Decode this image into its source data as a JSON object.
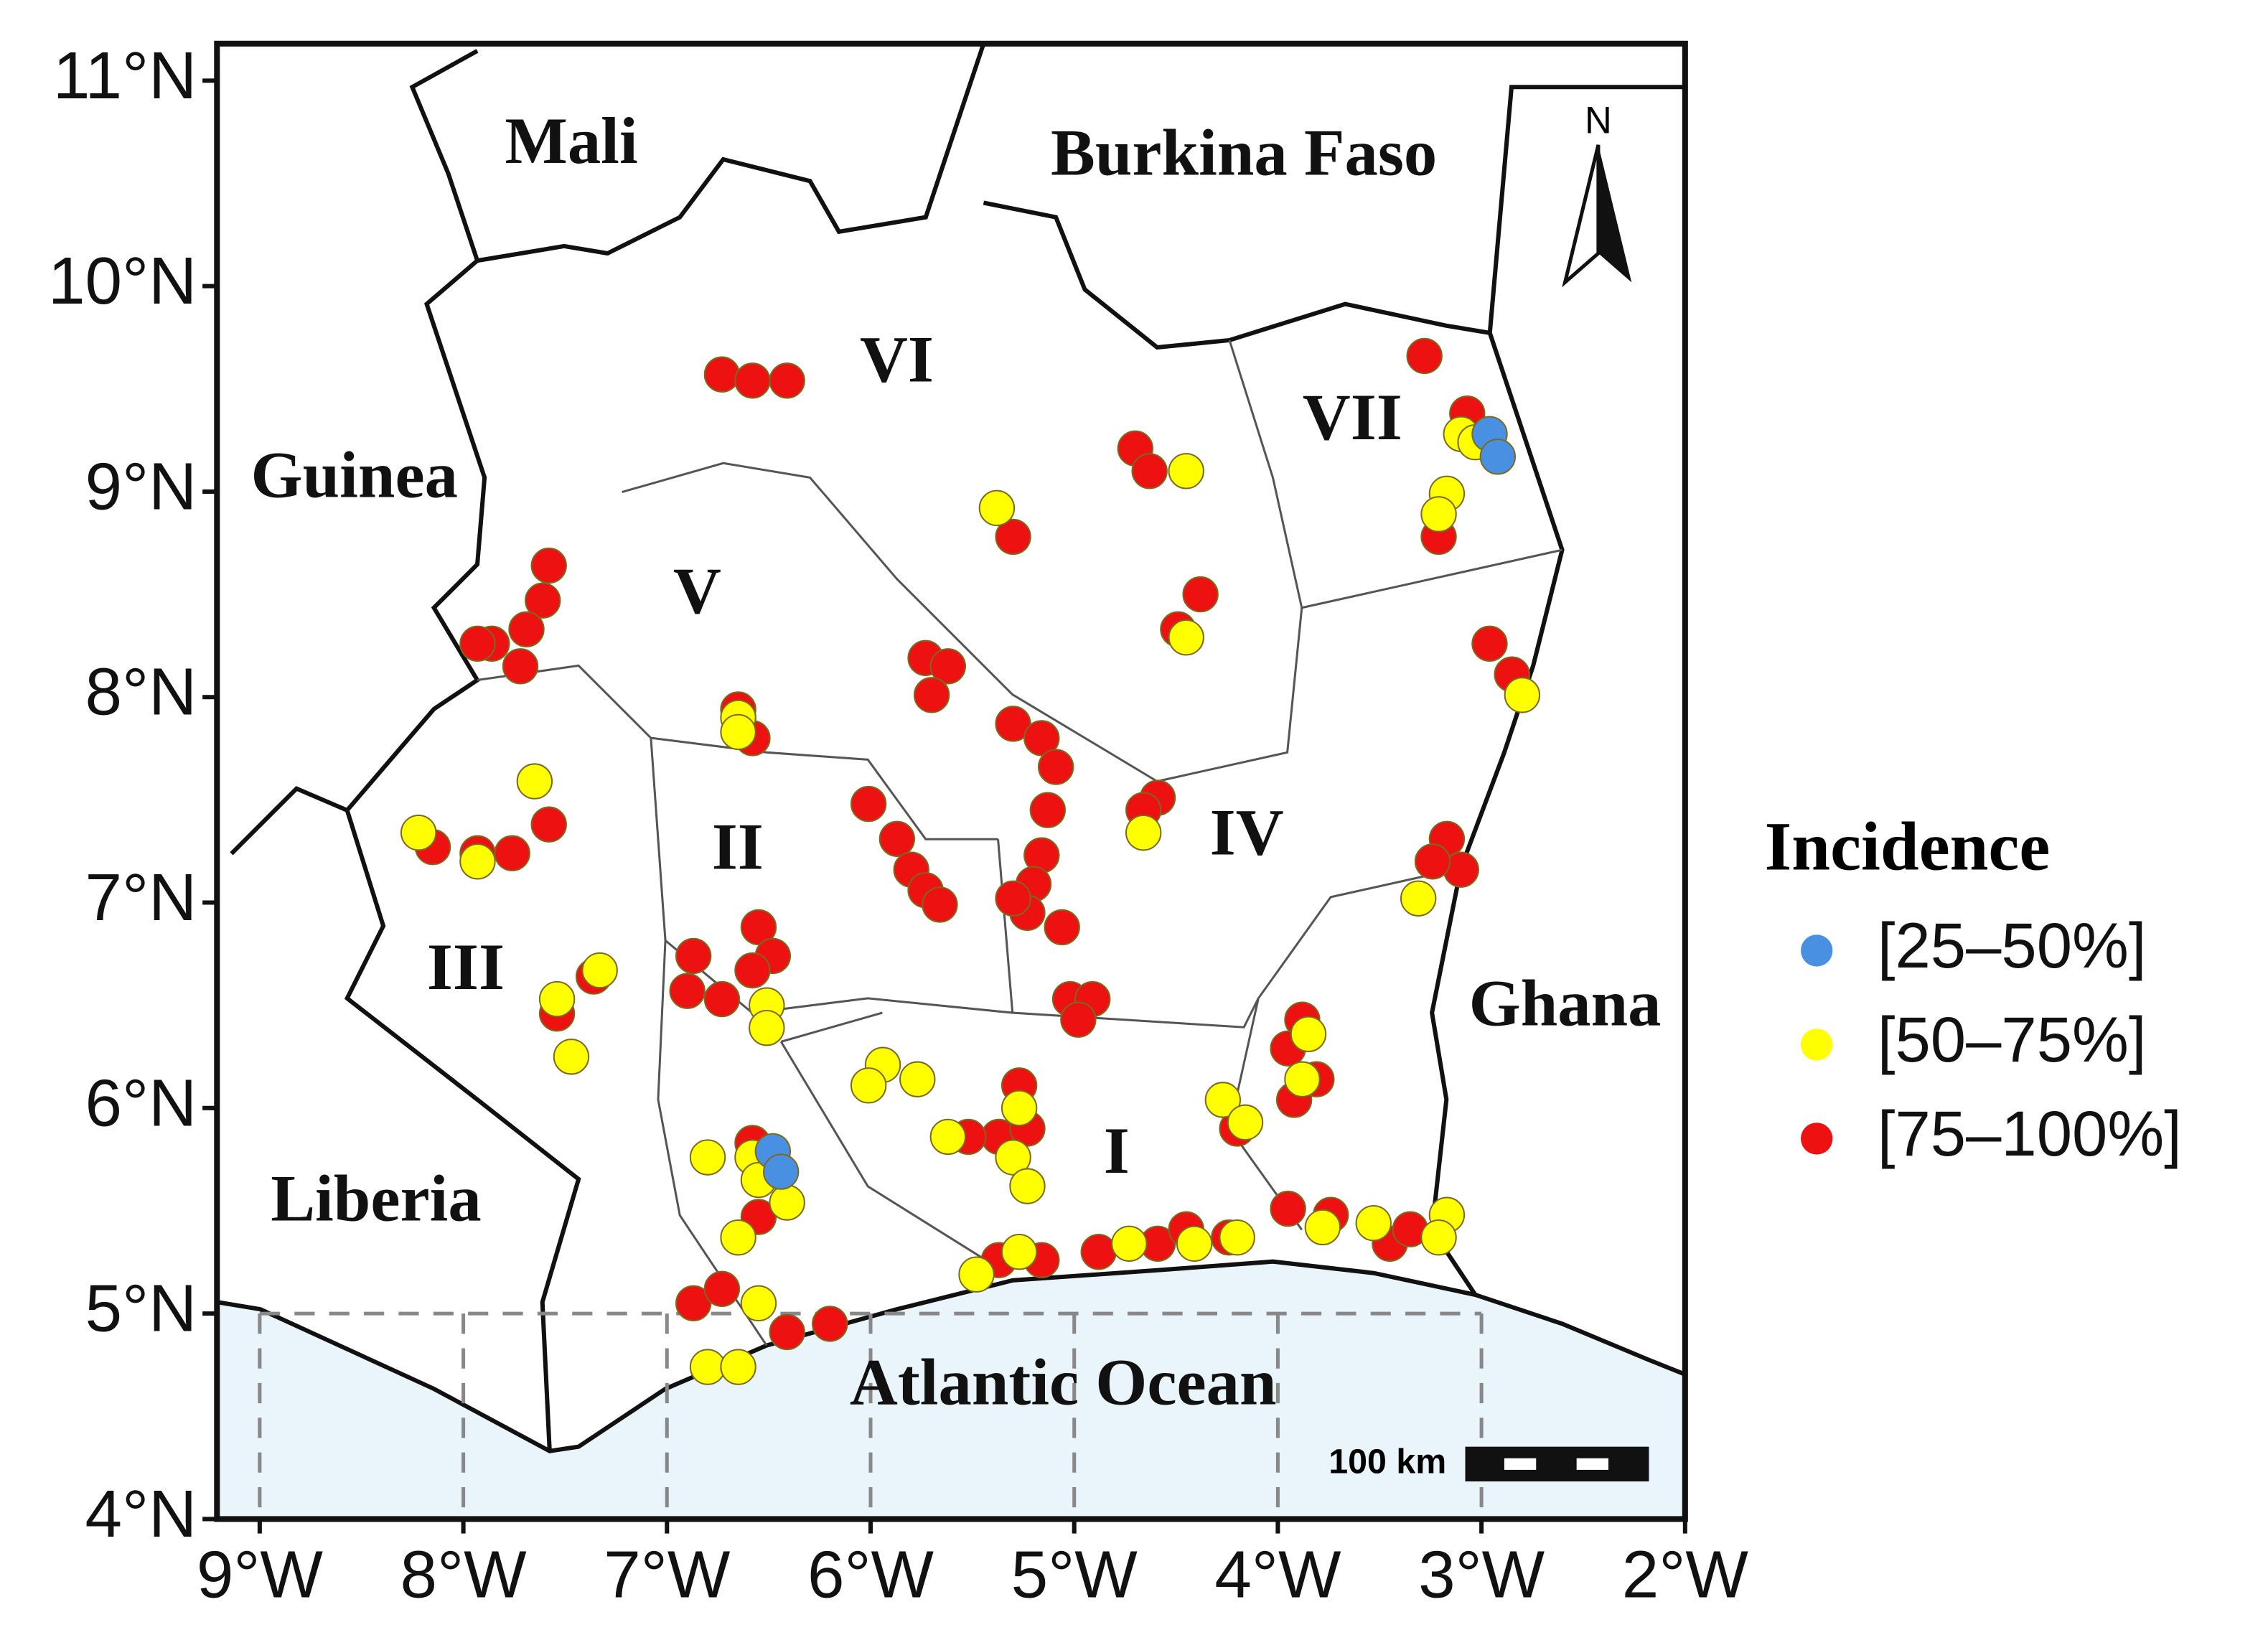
{
  "chart_data": {
    "type": "map",
    "legend_title": "Incidence",
    "labels": {
      "countries": [
        "Mali",
        "Burkina Faso",
        "Guinea",
        "Liberia",
        "Ghana"
      ],
      "regions": [
        "I",
        "II",
        "III",
        "IV",
        "V",
        "VI",
        "VII"
      ],
      "ocean": "Atlantic Ocean",
      "north": "N",
      "scale": "100 km"
    },
    "xlim": [
      -9.21,
      -2
    ],
    "ylim": [
      4,
      11.18
    ],
    "xticks": [
      {
        "value": -9,
        "label": "9°W"
      },
      {
        "value": -8,
        "label": "8°W"
      },
      {
        "value": -7,
        "label": "7°W"
      },
      {
        "value": -6,
        "label": "6°W"
      },
      {
        "value": -5,
        "label": "5°W"
      },
      {
        "value": -4,
        "label": "4°W"
      },
      {
        "value": -3,
        "label": "3°W"
      },
      {
        "value": -2,
        "label": "2°W"
      }
    ],
    "yticks": [
      {
        "value": 4,
        "label": "4°N"
      },
      {
        "value": 5,
        "label": "5°N"
      },
      {
        "value": 6,
        "label": "6°N"
      },
      {
        "value": 7,
        "label": "7°N"
      },
      {
        "value": 8,
        "label": "8°N"
      },
      {
        "value": 9,
        "label": "9°N"
      },
      {
        "value": 10,
        "label": "10°N"
      },
      {
        "value": 11,
        "label": "11°N"
      }
    ],
    "series": [
      {
        "name": "[25–50%]",
        "color": "#4a90e2",
        "x": [
          -2.96,
          -2.92,
          -6.48,
          -6.44
        ],
        "y": [
          9.28,
          9.17,
          5.79,
          5.69
        ]
      },
      {
        "name": "[50–75%]",
        "color": "#ffff00",
        "x": [
          -5.38,
          -4.45,
          -3.17,
          -3.21,
          -3.1,
          -3.03,
          -4.45,
          -6.65,
          -6.65,
          -2.8,
          -7.65,
          -8.22,
          -7.93,
          -4.66,
          -3.31,
          -7.54,
          -7.47,
          -7.33,
          -6.51,
          -6.51,
          -5.94,
          -6.01,
          -5.77,
          -5.62,
          -5.27,
          -5.3,
          -5.23,
          -4.27,
          -4.16,
          -3.88,
          -3.85,
          -6.8,
          -6.58,
          -6.55,
          -6.41,
          -6.65,
          -6.55,
          -6.8,
          -6.65,
          -5.48,
          -5.27,
          -4.73,
          -4.41,
          -4.2,
          -3.78,
          -3.53,
          -3.17,
          -3.21
        ],
        "y": [
          8.92,
          9.1,
          8.99,
          8.89,
          9.28,
          9.24,
          8.29,
          7.9,
          7.83,
          8.01,
          7.59,
          7.34,
          7.2,
          7.34,
          7.02,
          6.53,
          6.25,
          6.67,
          6.5,
          6.39,
          6.21,
          6.11,
          6.14,
          5.86,
          6.0,
          5.76,
          5.62,
          6.04,
          5.93,
          6.14,
          6.36,
          5.76,
          5.76,
          5.65,
          5.54,
          5.37,
          5.05,
          4.74,
          4.74,
          5.19,
          5.3,
          5.34,
          5.34,
          5.37,
          5.42,
          5.44,
          5.48,
          5.37
        ]
      },
      {
        "name": "[75–100%]",
        "color": "#ee1111",
        "x": [
          -6.73,
          -6.58,
          -6.41,
          -4.7,
          -4.63,
          -5.3,
          -4.38,
          -4.49,
          -5.73,
          -5.62,
          -5.7,
          -7.58,
          -7.61,
          -7.69,
          -7.86,
          -7.93,
          -7.72,
          -3.28,
          -3.07,
          -3.21,
          -2.96,
          -2.85,
          -6.65,
          -6.58,
          -6.01,
          -5.87,
          -5.8,
          -5.73,
          -5.66,
          -5.3,
          -5.16,
          -5.09,
          -5.13,
          -5.16,
          -5.2,
          -5.23,
          -5.06,
          -5.3,
          -4.59,
          -4.66,
          -5.02,
          -4.91,
          -4.98,
          -6.87,
          -6.73,
          -6.55,
          -6.48,
          -6.58,
          -6.9,
          -7.58,
          -7.76,
          -7.93,
          -8.15,
          -7.36,
          -7.54,
          -3.17,
          -3.1,
          -3.24,
          -3.88,
          -3.95,
          -3.81,
          -3.92,
          -5.27,
          -5.37,
          -5.52,
          -5.23,
          -4.2,
          -6.58,
          -6.55,
          -6.87,
          -6.73,
          -6.41,
          -6.2,
          -5.37,
          -4.88,
          -4.59,
          -4.45,
          -4.24,
          -3.95,
          -3.74,
          -3.45,
          -3.35,
          -5.16
        ],
        "y": [
          9.57,
          9.54,
          9.54,
          9.21,
          9.1,
          8.78,
          8.5,
          8.33,
          8.19,
          8.15,
          8.01,
          8.64,
          8.47,
          8.33,
          8.26,
          8.26,
          8.15,
          9.66,
          9.38,
          8.78,
          8.26,
          8.11,
          7.94,
          7.8,
          7.48,
          7.31,
          7.16,
          7.06,
          6.99,
          7.87,
          7.8,
          7.66,
          7.45,
          7.23,
          7.09,
          6.95,
          6.88,
          7.02,
          7.51,
          7.45,
          6.53,
          6.53,
          6.43,
          6.74,
          6.53,
          6.88,
          6.74,
          6.67,
          6.57,
          7.38,
          7.24,
          7.24,
          7.27,
          6.64,
          6.46,
          7.31,
          7.16,
          7.2,
          6.43,
          6.29,
          6.14,
          6.04,
          6.11,
          5.86,
          5.86,
          5.9,
          5.9,
          5.83,
          5.47,
          5.05,
          5.12,
          4.91,
          4.95,
          5.26,
          5.3,
          5.34,
          5.41,
          5.37,
          5.51,
          5.48,
          5.34,
          5.41,
          5.26
        ]
      }
    ]
  }
}
